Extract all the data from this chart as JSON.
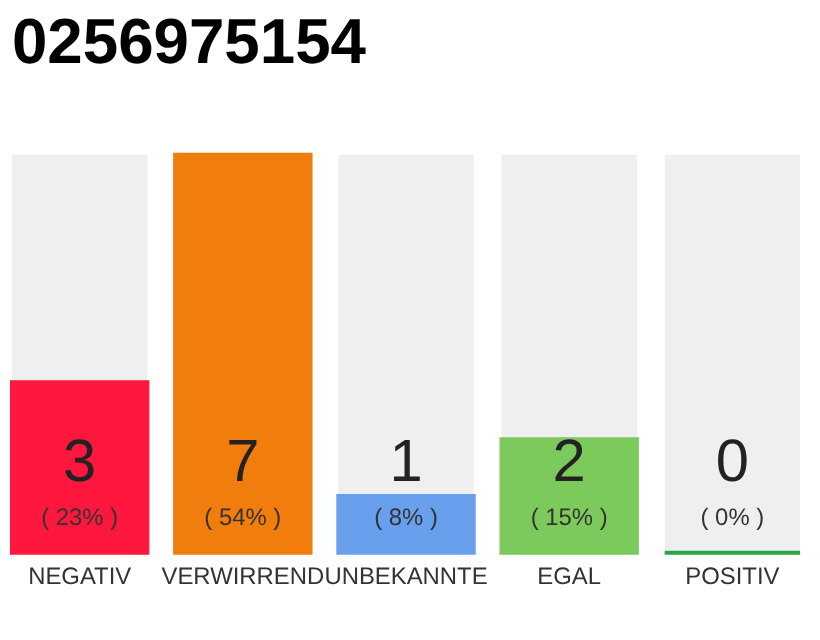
{
  "chart_data": {
    "type": "bar",
    "title": "0256975154",
    "categories": [
      "NEGATIV",
      "VERWIRREND",
      "UNBEKANNTE",
      "EGAL",
      "POSITIV"
    ],
    "values": [
      3,
      7,
      1,
      2,
      0
    ],
    "colors": [
      "#ff173d",
      "#f07d0c",
      "#68a0ee",
      "#7cc95c",
      "#28a745"
    ],
    "data_labels": true,
    "annotations": [
      "( 23% )",
      "( 54% )",
      "( 8% )",
      "( 15% )",
      "( 0% )"
    ]
  }
}
